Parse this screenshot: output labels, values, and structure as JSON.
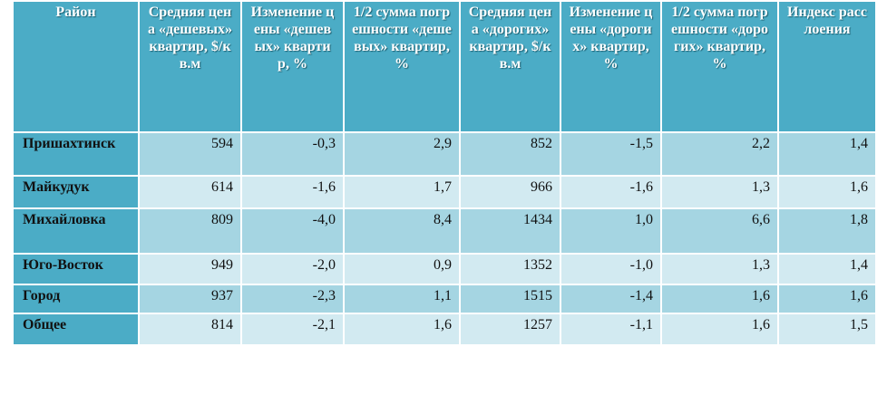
{
  "table": {
    "header": [
      "Район",
      "Средняя цена «дешевых» квартир, $/кв.м",
      "Изменение цены «дешевых» квартир, %",
      "1/2 сумма погрешности «дешевых» квартир, %",
      "Средняя цена «дорогих» квартир, $/кв.м",
      "Изменение цены «дорогих» квартир, %",
      "1/2 сумма погрешности «дорогих» квартир, %",
      "Индекс расслоения"
    ],
    "rows": [
      [
        "Пришахтинск",
        "594",
        "-0,3",
        "2,9",
        "852",
        "-1,5",
        "2,2",
        "1,4"
      ],
      [
        "Майкудук",
        "614",
        "-1,6",
        "1,7",
        "966",
        "-1,6",
        "1,3",
        "1,6"
      ],
      [
        "Михайловка",
        "809",
        "-4,0",
        "8,4",
        "1434",
        "1,0",
        "6,6",
        "1,8"
      ],
      [
        "Юго-Восток",
        "949",
        "-2,0",
        "0,9",
        "1352",
        "-1,0",
        "1,3",
        "1,4"
      ],
      [
        "Город",
        "937",
        "-2,3",
        "1,1",
        "1515",
        "-1,4",
        "1,6",
        "1,6"
      ],
      [
        "Общее",
        "814",
        "-2,1",
        "1,6",
        "1257",
        "-1,1",
        "1,6",
        "1,5"
      ]
    ]
  }
}
